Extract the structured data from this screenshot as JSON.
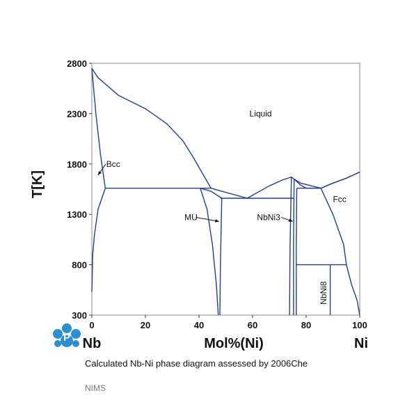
{
  "chart_data": {
    "type": "line",
    "diagram_kind": "binary phase diagram",
    "ylabel": "T[K]",
    "xlabel": "Mol%(Ni)",
    "left_element": "Nb",
    "right_element": "Ni",
    "xlim": [
      0,
      100
    ],
    "ylim": [
      300,
      2800
    ],
    "xticks": [
      0,
      20,
      40,
      60,
      80,
      100
    ],
    "yticks": [
      300,
      800,
      1300,
      1800,
      2300,
      2800
    ],
    "grid": false,
    "line_color": "#1f3c9e",
    "series": [
      {
        "x": [
          0,
          2.2,
          10,
          20,
          28,
          34,
          38,
          41,
          44.5
        ],
        "y": [
          2750,
          2660,
          2480,
          2350,
          2200,
          2030,
          1860,
          1720,
          1560
        ]
      },
      {
        "x": [
          0,
          1.5,
          3.2,
          5
        ],
        "y": [
          2750,
          2300,
          1900,
          1560
        ]
      },
      {
        "x": [
          0,
          0.3,
          1,
          2.3,
          5
        ],
        "y": [
          530,
          900,
          1100,
          1350,
          1560
        ]
      },
      {
        "x": [
          5,
          44.5
        ],
        "y": [
          1560,
          1560
        ]
      },
      {
        "x": [
          44.5,
          48.5,
          58,
          66,
          71,
          74.5,
          75.5,
          78,
          80,
          85.5
        ],
        "y": [
          1560,
          1530,
          1460,
          1580,
          1640,
          1670,
          1650,
          1590,
          1560,
          1560
        ]
      },
      {
        "x": [
          85.5,
          89,
          95,
          100
        ],
        "y": [
          1560,
          1600,
          1660,
          1720
        ]
      },
      {
        "x": [
          75.5,
          78,
          85.5,
          90,
          95,
          100
        ],
        "y": [
          1650,
          1610,
          1560,
          1610,
          1660,
          1720
        ]
      },
      {
        "x": [
          48,
          75.5
        ],
        "y": [
          1460,
          1460
        ]
      },
      {
        "x": [
          40.5,
          44.5,
          48.5
        ],
        "y": [
          1560,
          1530,
          1460
        ]
      },
      {
        "x": [
          40.5,
          43,
          45,
          46.5,
          47.2
        ],
        "y": [
          1560,
          1350,
          1000,
          600,
          300
        ]
      },
      {
        "x": [
          48.5,
          48,
          47.8
        ],
        "y": [
          1460,
          800,
          300
        ]
      },
      {
        "x": [
          74.5,
          74,
          73.8
        ],
        "y": [
          1670,
          1000,
          300
        ]
      },
      {
        "x": [
          75.5,
          75.3,
          75.3
        ],
        "y": [
          1650,
          1000,
          300
        ]
      },
      {
        "x": [
          76.5,
          85.5
        ],
        "y": [
          1560,
          1560
        ]
      },
      {
        "x": [
          76.5,
          76.3,
          76.3
        ],
        "y": [
          1560,
          1000,
          300
        ]
      },
      {
        "x": [
          85.5,
          90,
          94,
          95
        ],
        "y": [
          1560,
          1300,
          1000,
          800
        ]
      },
      {
        "x": [
          95,
          97,
          99,
          100
        ],
        "y": [
          800,
          600,
          450,
          300
        ]
      },
      {
        "x": [
          76.3,
          95
        ],
        "y": [
          800,
          800
        ]
      },
      {
        "x": [
          89,
          89
        ],
        "y": [
          800,
          300
        ]
      }
    ],
    "annotations": [
      {
        "text": "Liquid",
        "x": 63,
        "y": 2300
      },
      {
        "text": "Bcc",
        "x": 8,
        "y": 1800,
        "arrow_to": [
          2.3,
          1690
        ]
      },
      {
        "text": "Fcc",
        "x": 92.5,
        "y": 1450
      },
      {
        "text": "MU",
        "x": 37,
        "y": 1270,
        "arrow_to": [
          47.5,
          1230
        ]
      },
      {
        "text": "NbNi3",
        "x": 66,
        "y": 1270,
        "arrow_to": [
          75,
          1230
        ]
      },
      {
        "text": "NbNi8",
        "x": 86.5,
        "y": 520,
        "rotated": true
      }
    ]
  },
  "caption": "Calculated Nb-Ni phase diagram assessed by 2006Che",
  "source": "NIMS",
  "logo": {
    "letter": "P",
    "color": "#2a8fd6"
  }
}
